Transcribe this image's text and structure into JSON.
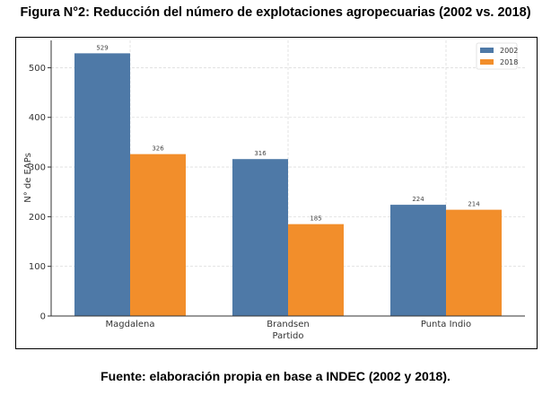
{
  "title": "Figura N°2: Reducción del número de explotaciones agropecuarias (2002 vs. 2018)",
  "source": "Fuente: elaboración propia en base a INDEC (2002 y 2018).",
  "chart_data": {
    "type": "bar",
    "title": "Figura N°2: Reducción del número de explotaciones agropecuarias (2002 vs. 2018)",
    "xlabel": "Partido",
    "ylabel": "N° de EAPs",
    "categories": [
      "Magdalena",
      "Brandsen",
      "Punta Indio"
    ],
    "series": [
      {
        "name": "2002",
        "color": "#4e79a7",
        "values": [
          529,
          316,
          224
        ]
      },
      {
        "name": "2018",
        "color": "#f28e2b",
        "values": [
          326,
          185,
          214
        ]
      }
    ],
    "ylim": [
      0,
      555
    ],
    "yticks": [
      0,
      100,
      200,
      300,
      400,
      500
    ],
    "grid": true,
    "legend": "top-right"
  }
}
